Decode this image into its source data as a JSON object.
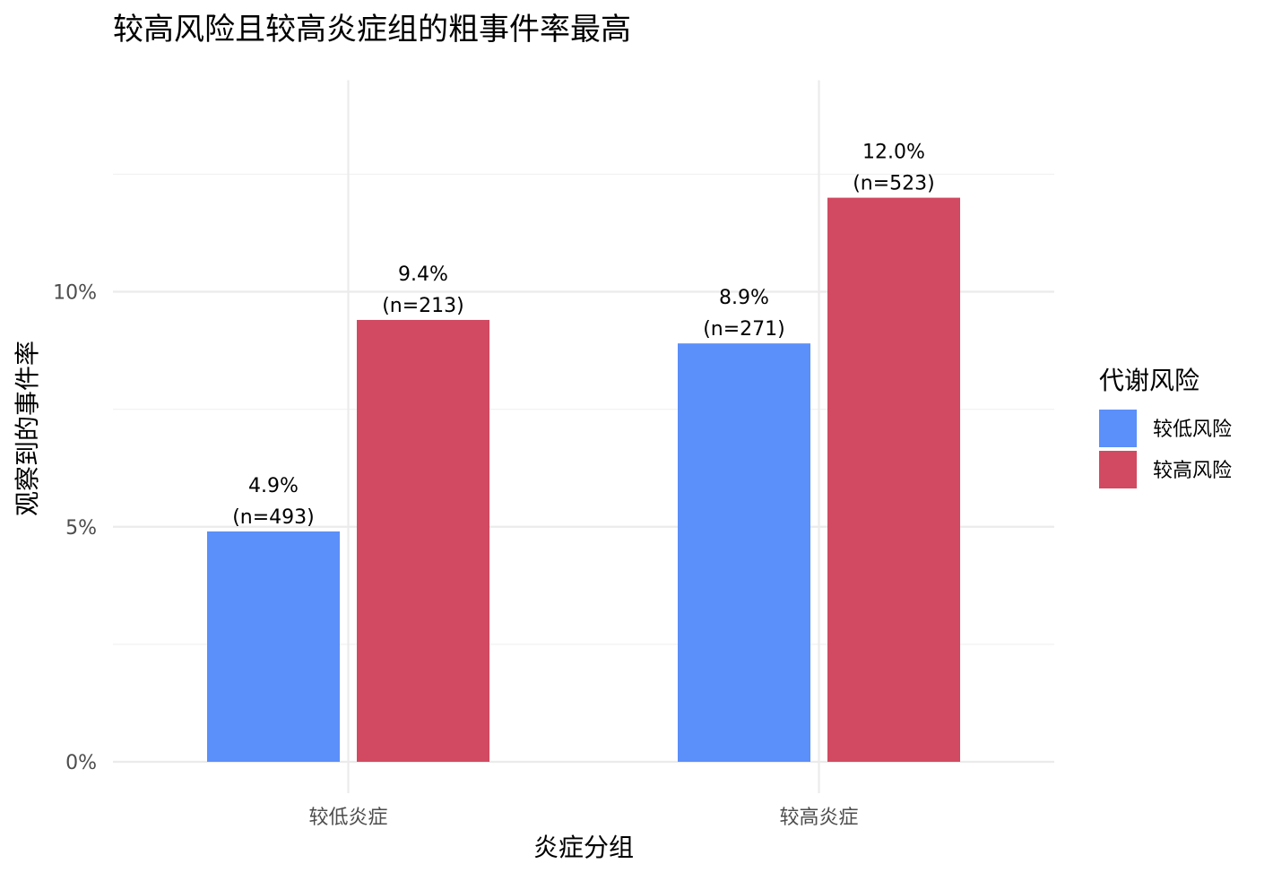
{
  "chart_data": {
    "type": "bar",
    "title": "较高风险且较高炎症组的粗事件率最高",
    "xlabel": "炎症分组",
    "ylabel": "观察到的事件率",
    "categories": [
      "较低炎症",
      "较高炎症"
    ],
    "series": [
      {
        "name": "较低风险",
        "color": "#5B8FF9",
        "values": [
          4.9,
          8.9
        ],
        "value_labels": [
          "4.9%",
          "8.9%"
        ],
        "n_labels": [
          "(n=493)",
          "(n=271)"
        ]
      },
      {
        "name": "较高风险",
        "color": "#D14A61",
        "values": [
          9.4,
          12.0
        ],
        "value_labels": [
          "9.4%",
          "12.0%"
        ],
        "n_labels": [
          "(n=213)",
          "(n=523)"
        ]
      }
    ],
    "ylim": [
      0,
      14.5
    ],
    "yticks": [
      0,
      5,
      10
    ],
    "ytick_labels": [
      "0%",
      "5%",
      "10%"
    ],
    "grid": true,
    "legend": {
      "title": "代谢风险",
      "position": "right"
    }
  }
}
